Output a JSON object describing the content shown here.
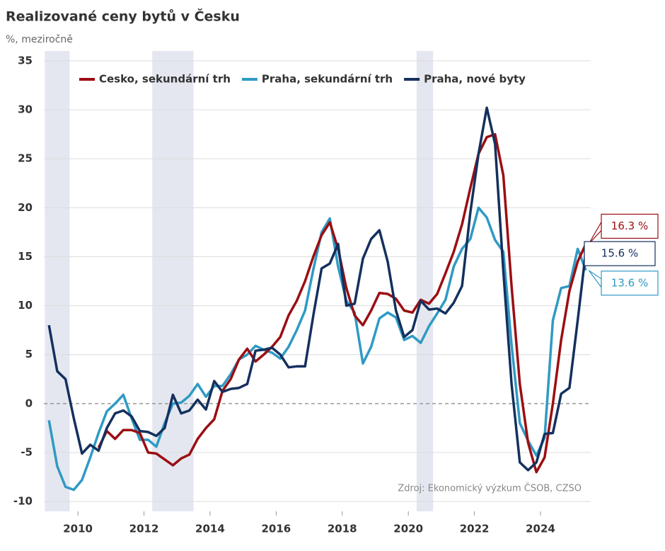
{
  "chart_data": {
    "type": "line",
    "title": "Realizované ceny bytů v Česku",
    "subtitle": "%, meziročně",
    "source": "Zdroj: Ekonomický výzkum ČSOB, CZSO",
    "x": [
      2009.125,
      2009.375,
      2009.625,
      2009.875,
      2010.125,
      2010.375,
      2010.625,
      2010.875,
      2011.125,
      2011.375,
      2011.625,
      2011.875,
      2012.125,
      2012.375,
      2012.625,
      2012.875,
      2013.125,
      2013.375,
      2013.625,
      2013.875,
      2014.125,
      2014.375,
      2014.625,
      2014.875,
      2015.125,
      2015.375,
      2015.625,
      2015.875,
      2016.125,
      2016.375,
      2016.625,
      2016.875,
      2017.125,
      2017.375,
      2017.625,
      2017.875,
      2018.125,
      2018.375,
      2018.625,
      2018.875,
      2019.125,
      2019.375,
      2019.625,
      2019.875,
      2020.125,
      2020.375,
      2020.625,
      2020.875,
      2021.125,
      2021.375,
      2021.625,
      2021.875,
      2022.125,
      2022.375,
      2022.625,
      2022.875,
      2023.125,
      2023.375,
      2023.625,
      2023.875,
      2024.125,
      2024.375,
      2024.625,
      2024.875,
      2025.125,
      2025.375
    ],
    "series": [
      {
        "name": "Cesko, sekundární trh",
        "color": "#9b0e12",
        "end_label": "16.3 %",
        "values": [
          null,
          null,
          null,
          null,
          null,
          null,
          -4.5,
          -2.8,
          -3.6,
          -2.7,
          -2.7,
          -3.0,
          -5.0,
          -5.1,
          -5.7,
          -6.3,
          -5.6,
          -5.2,
          -3.6,
          -2.5,
          -1.6,
          1.3,
          2.5,
          4.5,
          5.6,
          4.3,
          5.0,
          5.8,
          6.8,
          9.0,
          10.5,
          12.5,
          15.0,
          17.2,
          18.5,
          15.8,
          11.8,
          9.0,
          8.0,
          9.5,
          11.3,
          11.2,
          10.7,
          9.5,
          9.3,
          10.6,
          10.2,
          11.2,
          13.3,
          15.5,
          18.3,
          22.0,
          25.5,
          27.2,
          27.5,
          23.3,
          12.0,
          2.0,
          -4.0,
          -7.0,
          -5.5,
          0.0,
          6.5,
          11.5,
          14.5,
          16.3
        ]
      },
      {
        "name": "Praha, sekundární trh",
        "color": "#2f9ac4",
        "end_label": "13.6 %",
        "values": [
          -1.7,
          -6.4,
          -8.5,
          -8.8,
          -7.8,
          -5.5,
          -3.0,
          -0.8,
          0.0,
          0.9,
          -1.5,
          -3.7,
          -3.7,
          -4.4,
          -2.0,
          0.0,
          0.1,
          0.8,
          2.0,
          0.7,
          1.8,
          1.8,
          3.0,
          4.5,
          5.0,
          5.9,
          5.5,
          5.2,
          4.6,
          5.8,
          7.5,
          9.5,
          13.7,
          17.5,
          18.9,
          14.0,
          10.5,
          9.3,
          4.1,
          5.8,
          8.7,
          9.3,
          8.8,
          6.5,
          6.9,
          6.2,
          7.9,
          9.2,
          10.6,
          14.0,
          15.8,
          16.8,
          20.0,
          19.0,
          16.7,
          15.5,
          6.0,
          -2.0,
          -3.8,
          -5.3,
          -3.5,
          8.5,
          11.8,
          12.0,
          15.8,
          13.6
        ]
      },
      {
        "name": "Praha, nové byty",
        "color": "#14305e",
        "end_label": "15.6 %",
        "values": [
          8.0,
          3.3,
          2.5,
          -1.5,
          -5.1,
          -4.2,
          -4.8,
          -2.5,
          -1.0,
          -0.7,
          -1.3,
          -2.8,
          -2.9,
          -3.3,
          -2.5,
          0.9,
          -1.0,
          -0.7,
          0.4,
          -0.6,
          2.3,
          1.2,
          1.5,
          1.6,
          2.0,
          5.4,
          5.5,
          5.7,
          5.0,
          3.7,
          3.8,
          3.8,
          9.0,
          13.8,
          14.3,
          16.3,
          10.0,
          10.2,
          14.8,
          16.8,
          17.7,
          14.5,
          9.5,
          6.8,
          7.5,
          10.5,
          9.6,
          9.7,
          9.2,
          10.3,
          12.0,
          19.5,
          25.5,
          30.2,
          26.5,
          13.5,
          2.0,
          -6.0,
          -6.8,
          -6.0,
          -3.1,
          -3.0,
          1.0,
          1.6,
          8.5,
          15.6
        ]
      }
    ],
    "shaded_periods": [
      [
        2009.0,
        2009.75
      ],
      [
        2012.25,
        2013.5
      ],
      [
        2020.25,
        2020.75
      ]
    ],
    "xlim": [
      2008.97,
      2025.52
    ],
    "xticks": [
      2010,
      2012,
      2014,
      2016,
      2018,
      2020,
      2022,
      2024
    ],
    "ylim": [
      -11,
      36
    ],
    "yticks": [
      -10,
      -5,
      0,
      5,
      10,
      15,
      20,
      25,
      30,
      35
    ],
    "grid": true,
    "zero_line_dashed": true,
    "legend": "top"
  }
}
